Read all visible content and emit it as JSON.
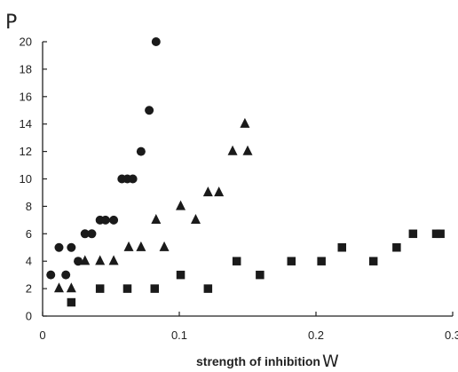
{
  "chart_data": {
    "type": "scatter",
    "title": "",
    "ylabel": "P",
    "xlabel": "strength of inhibition",
    "xlabel_symbol": "W",
    "xlim": [
      0,
      0.3
    ],
    "ylim": [
      0,
      20
    ],
    "xticks": [
      "0",
      "0.1",
      "0.2",
      "0.3"
    ],
    "yticks": [
      "0",
      "2",
      "4",
      "6",
      "8",
      "10",
      "12",
      "14",
      "16",
      "18",
      "20"
    ],
    "grid": false,
    "legend": "none",
    "series": [
      {
        "marker": "circle",
        "points": [
          [
            0.006,
            3
          ],
          [
            0.012,
            5
          ],
          [
            0.017,
            3
          ],
          [
            0.021,
            5
          ],
          [
            0.026,
            4
          ],
          [
            0.031,
            6
          ],
          [
            0.036,
            6
          ],
          [
            0.042,
            7
          ],
          [
            0.046,
            7
          ],
          [
            0.052,
            7
          ],
          [
            0.058,
            10
          ],
          [
            0.062,
            10
          ],
          [
            0.066,
            10
          ],
          [
            0.072,
            12
          ],
          [
            0.078,
            15
          ],
          [
            0.083,
            20
          ]
        ]
      },
      {
        "marker": "triangle",
        "points": [
          [
            0.012,
            2
          ],
          [
            0.021,
            2
          ],
          [
            0.031,
            4
          ],
          [
            0.042,
            4
          ],
          [
            0.052,
            4
          ],
          [
            0.063,
            5
          ],
          [
            0.072,
            5
          ],
          [
            0.083,
            7
          ],
          [
            0.089,
            5
          ],
          [
            0.101,
            8
          ],
          [
            0.112,
            7
          ],
          [
            0.121,
            9
          ],
          [
            0.129,
            9
          ],
          [
            0.139,
            12
          ],
          [
            0.148,
            14
          ],
          [
            0.15,
            12
          ]
        ]
      },
      {
        "marker": "square",
        "points": [
          [
            0.021,
            1
          ],
          [
            0.042,
            2
          ],
          [
            0.062,
            2
          ],
          [
            0.082,
            2
          ],
          [
            0.101,
            3
          ],
          [
            0.121,
            2
          ],
          [
            0.142,
            4
          ],
          [
            0.159,
            3
          ],
          [
            0.182,
            4
          ],
          [
            0.204,
            4
          ],
          [
            0.219,
            5
          ],
          [
            0.242,
            4
          ],
          [
            0.259,
            5
          ],
          [
            0.271,
            6
          ],
          [
            0.288,
            6
          ],
          [
            0.291,
            6
          ]
        ]
      }
    ]
  }
}
